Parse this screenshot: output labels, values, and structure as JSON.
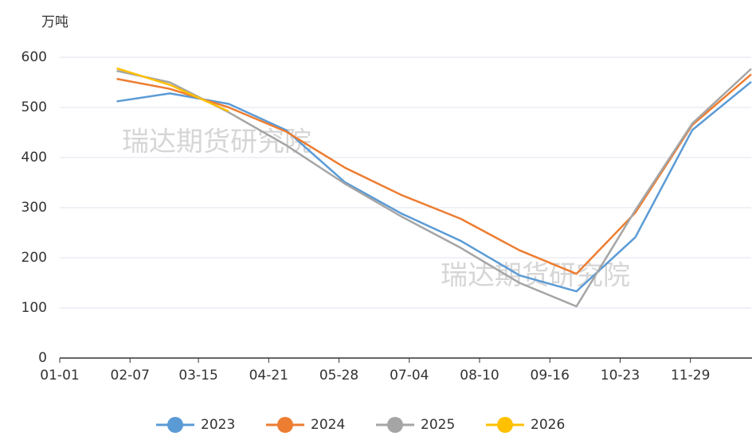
{
  "chart_data": {
    "type": "line",
    "unit_label": "万吨",
    "watermarks": [
      "瑞达期货研究院",
      "瑞达期货研究院"
    ],
    "x": [
      "01-31",
      "02-28",
      "03-31",
      "04-30",
      "05-31",
      "06-30",
      "07-31",
      "08-31",
      "09-30",
      "10-31",
      "11-30",
      "12-31"
    ],
    "series": [
      {
        "name": "2023",
        "color": "#5b9bd5",
        "values": [
          512,
          528,
          507,
          455,
          351,
          288,
          234,
          165,
          133,
          241,
          455,
          551
        ]
      },
      {
        "name": "2024",
        "color": "#ed7d31",
        "values": [
          557,
          537,
          500,
          452,
          380,
          325,
          278,
          215,
          168,
          290,
          465,
          566
        ]
      },
      {
        "name": "2025",
        "color": "#a5a5a5",
        "values": [
          573,
          550,
          490,
          425,
          348,
          282,
          220,
          150,
          103,
          295,
          468,
          577
        ]
      },
      {
        "name": "2026",
        "color": "#ffc000",
        "values": [
          578,
          545,
          492,
          null,
          null,
          null,
          null,
          null,
          null,
          null,
          null,
          null
        ]
      }
    ],
    "xlim": [
      "01-01",
      "12-31"
    ],
    "xticks": [
      "01-01",
      "02-07",
      "03-15",
      "04-21",
      "05-28",
      "07-04",
      "08-10",
      "09-16",
      "10-23",
      "11-29"
    ],
    "ylim": [
      0,
      600
    ],
    "yticks": [
      0,
      100,
      200,
      300,
      400,
      500,
      600
    ],
    "grid": true,
    "legend": "bottom"
  }
}
